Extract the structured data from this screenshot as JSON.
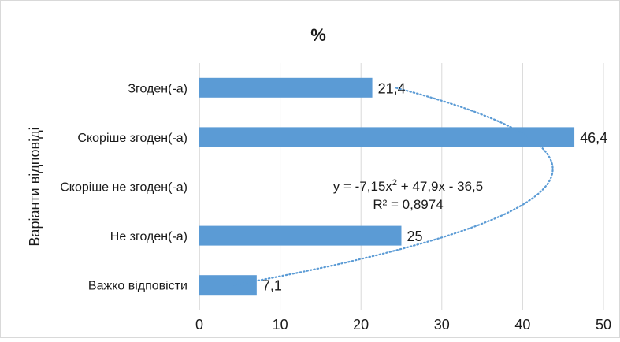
{
  "chart_data": {
    "type": "bar",
    "orientation": "horizontal",
    "title": "%",
    "xlabel": "",
    "ylabel": "Варіанти відповіді",
    "categories": [
      "Згоден(-а)",
      "Скоріше згоден(-а)",
      "Скоріше не згоден(-а)",
      "Не згоден(-а)",
      "Важко відповісти"
    ],
    "values": [
      21.4,
      46.4,
      null,
      25,
      7.1
    ],
    "data_labels": [
      "21,4",
      "46,4",
      "",
      "25",
      "7,1"
    ],
    "xlim": [
      0,
      50
    ],
    "x_ticks": [
      0,
      10,
      20,
      30,
      40,
      50
    ],
    "x_tick_labels": [
      "0",
      "10",
      "20",
      "30",
      "40",
      "50"
    ],
    "grid": "vertical",
    "legend": "none",
    "bar_color": "#5b9bd5",
    "trendline": {
      "type": "polynomial",
      "order": 2,
      "style": "dotted",
      "color": "#5b9bd5",
      "coefficients": {
        "a": -7.15,
        "b": 47.9,
        "c": -36.5
      },
      "equation_label": "y = -7,15x² + 47,9x - 36,5",
      "r2_label": "R² = 0,8974"
    }
  }
}
